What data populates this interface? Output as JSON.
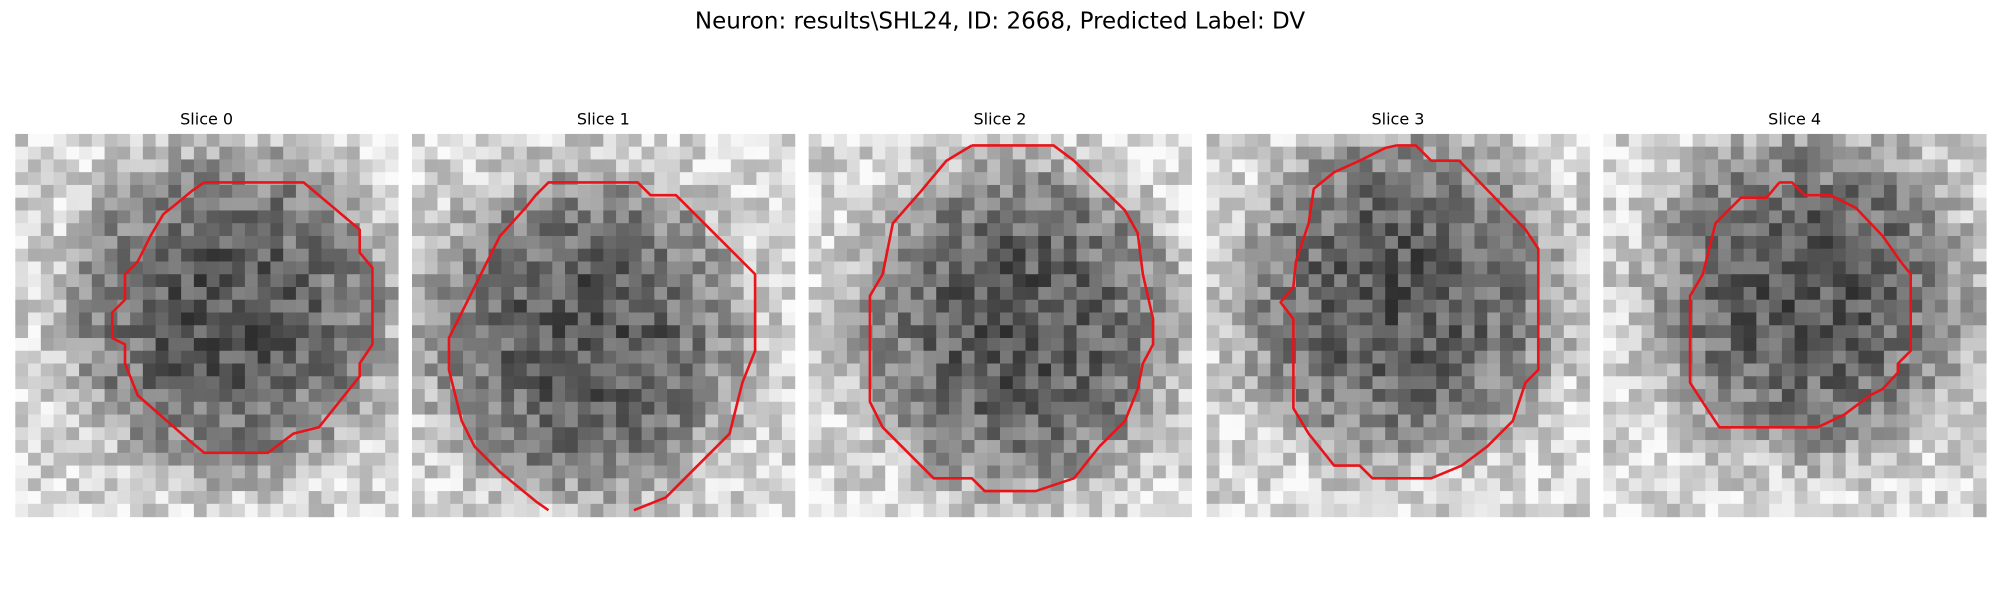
{
  "title": "Neuron: results\\SHL24, ID: 2668, Predicted Label: DV",
  "panels": [
    {
      "title": "Slice 0"
    },
    {
      "title": "Slice 1"
    },
    {
      "title": "Slice 2"
    },
    {
      "title": "Slice 3"
    },
    {
      "title": "Slice 4"
    }
  ]
}
